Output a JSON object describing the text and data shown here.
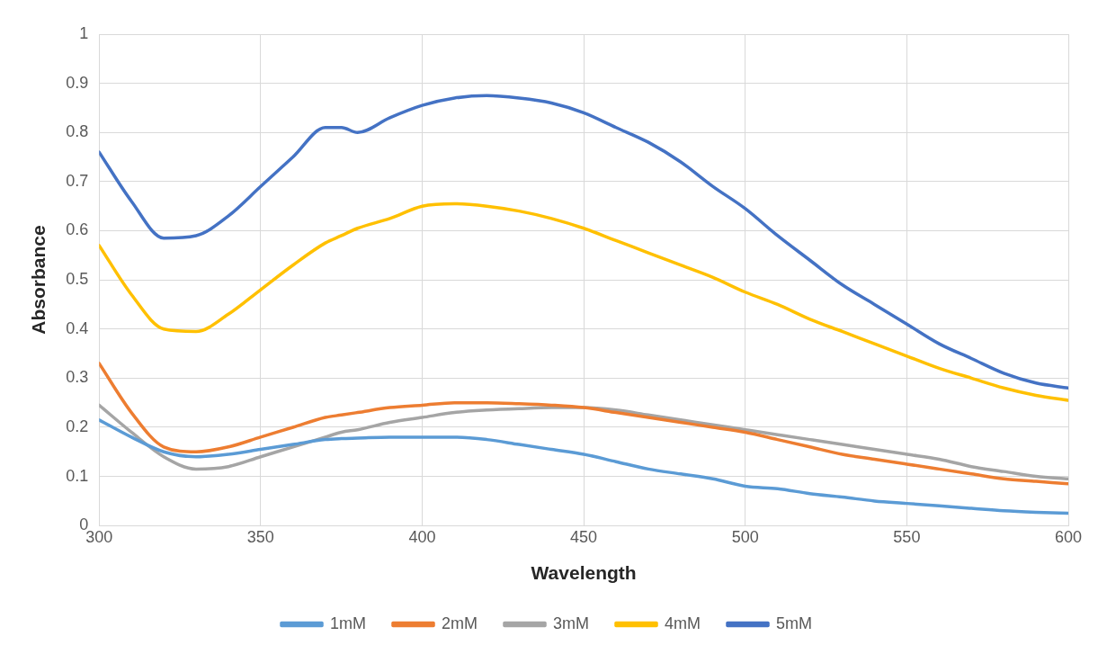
{
  "chart_data": {
    "type": "line",
    "xlabel": "Wavelength",
    "ylabel": "Absorbance",
    "x": [
      300,
      310,
      320,
      330,
      340,
      350,
      360,
      370,
      375,
      380,
      390,
      400,
      410,
      420,
      430,
      440,
      450,
      460,
      470,
      480,
      490,
      500,
      510,
      520,
      530,
      540,
      550,
      560,
      570,
      580,
      590,
      600
    ],
    "series": [
      {
        "name": "1mM",
        "color": "#5b9bd5",
        "values": [
          0.215,
          0.18,
          0.15,
          0.14,
          0.145,
          0.155,
          0.165,
          0.175,
          0.177,
          0.178,
          0.18,
          0.18,
          0.18,
          0.175,
          0.165,
          0.155,
          0.145,
          0.13,
          0.115,
          0.105,
          0.095,
          0.08,
          0.075,
          0.065,
          0.058,
          0.05,
          0.045,
          0.04,
          0.035,
          0.03,
          0.027,
          0.025
        ]
      },
      {
        "name": "2mM",
        "color": "#ed7d31",
        "values": [
          0.33,
          0.23,
          0.16,
          0.15,
          0.16,
          0.18,
          0.2,
          0.22,
          0.225,
          0.23,
          0.24,
          0.245,
          0.25,
          0.25,
          0.248,
          0.245,
          0.24,
          0.23,
          0.22,
          0.21,
          0.2,
          0.19,
          0.175,
          0.16,
          0.145,
          0.135,
          0.125,
          0.115,
          0.105,
          0.095,
          0.09,
          0.085
        ]
      },
      {
        "name": "3mM",
        "color": "#a5a5a5",
        "values": [
          0.245,
          0.19,
          0.14,
          0.115,
          0.12,
          0.14,
          0.16,
          0.18,
          0.19,
          0.195,
          0.21,
          0.22,
          0.23,
          0.235,
          0.238,
          0.24,
          0.24,
          0.235,
          0.225,
          0.215,
          0.205,
          0.195,
          0.185,
          0.175,
          0.165,
          0.155,
          0.145,
          0.135,
          0.12,
          0.11,
          0.1,
          0.095
        ]
      },
      {
        "name": "4mM",
        "color": "#ffc000",
        "values": [
          0.57,
          0.47,
          0.4,
          0.395,
          0.43,
          0.48,
          0.53,
          0.575,
          0.59,
          0.605,
          0.625,
          0.65,
          0.655,
          0.65,
          0.64,
          0.625,
          0.605,
          0.58,
          0.555,
          0.53,
          0.505,
          0.475,
          0.45,
          0.42,
          0.395,
          0.37,
          0.345,
          0.32,
          0.3,
          0.28,
          0.265,
          0.255
        ]
      },
      {
        "name": "5mM",
        "color": "#4472c4",
        "values": [
          0.76,
          0.66,
          0.585,
          0.59,
          0.63,
          0.69,
          0.75,
          0.81,
          0.81,
          0.8,
          0.83,
          0.855,
          0.87,
          0.875,
          0.87,
          0.86,
          0.84,
          0.81,
          0.78,
          0.74,
          0.69,
          0.645,
          0.59,
          0.54,
          0.49,
          0.45,
          0.41,
          0.37,
          0.34,
          0.31,
          0.29,
          0.28
        ]
      }
    ],
    "xlim": [
      300,
      600
    ],
    "ylim": [
      0,
      1
    ],
    "xticks": [
      300,
      350,
      400,
      450,
      500,
      550,
      600
    ],
    "yticks": [
      0,
      0.1,
      0.2,
      0.3,
      0.4,
      0.5,
      0.6,
      0.7,
      0.8,
      0.9,
      1
    ],
    "grid": true,
    "legend": "bottom",
    "marker": "none",
    "line_style": "solid"
  }
}
